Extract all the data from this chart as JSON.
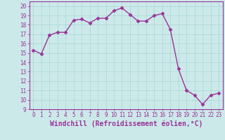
{
  "x": [
    0,
    1,
    2,
    3,
    4,
    5,
    6,
    7,
    8,
    9,
    10,
    11,
    12,
    13,
    14,
    15,
    16,
    17,
    18,
    19,
    20,
    21,
    22,
    23
  ],
  "y": [
    15.3,
    14.9,
    16.9,
    17.2,
    17.2,
    18.5,
    18.6,
    18.2,
    18.7,
    18.7,
    19.5,
    19.8,
    19.1,
    18.4,
    18.4,
    19.0,
    19.2,
    17.5,
    13.3,
    11.0,
    10.5,
    9.5,
    10.5,
    10.7
  ],
  "line_color": "#993399",
  "marker": "D",
  "markersize": 2.5,
  "linewidth": 1.0,
  "xlabel": "Windchill (Refroidissement éolien,°C)",
  "xlabel_fontsize": 7,
  "xlim": [
    -0.5,
    23.5
  ],
  "ylim": [
    9,
    20.5
  ],
  "yticks": [
    9,
    10,
    11,
    12,
    13,
    14,
    15,
    16,
    17,
    18,
    19,
    20
  ],
  "xticks": [
    0,
    1,
    2,
    3,
    4,
    5,
    6,
    7,
    8,
    9,
    10,
    11,
    12,
    13,
    14,
    15,
    16,
    17,
    18,
    19,
    20,
    21,
    22,
    23
  ],
  "background_color": "#cce9e9",
  "grid_color": "#aad4d4",
  "tick_fontsize": 5.5,
  "label_color": "#993399",
  "spine_color": "#993399"
}
